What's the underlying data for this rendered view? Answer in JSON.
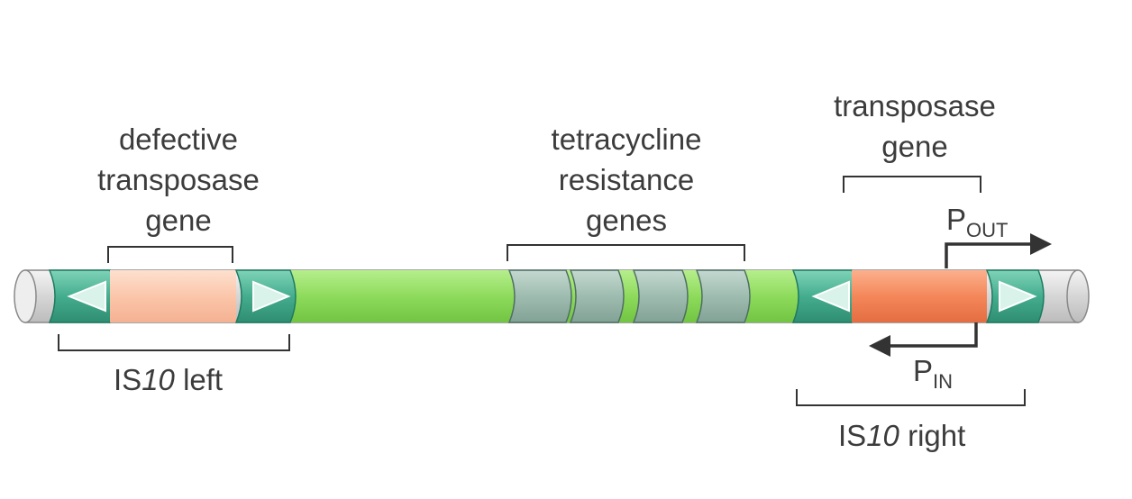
{
  "labels": {
    "defective_transposase": [
      "defective",
      "transposase",
      "gene"
    ],
    "tetracycline_resistance": [
      "tetracycline",
      "resistance",
      "genes"
    ],
    "transposase": [
      "transposase",
      "gene"
    ],
    "is10_left": {
      "prefix": "IS",
      "number": "10",
      "suffix": " left"
    },
    "is10_right": {
      "prefix": "IS",
      "number": "10",
      "suffix": " right"
    },
    "p_out": {
      "main": "P",
      "sub": "OUT"
    },
    "p_in": {
      "main": "P",
      "sub": "IN"
    }
  },
  "colors": {
    "backbone_gray": "#dcdcdc",
    "insertion_teal": "#4fb89a",
    "transposon_green": "#8fdc5e",
    "defective_gene_pink": "#fbc8ad",
    "tet_gene_gray": "#9fbcb0",
    "transposase_orange": "#f4895c",
    "line": "#333333"
  },
  "icons": {
    "left_element": [
      "inverted-repeat-arrow-left-icon",
      "inverted-repeat-arrow-right-icon"
    ],
    "right_element": [
      "inverted-repeat-arrow-left-icon",
      "inverted-repeat-arrow-right-icon"
    ],
    "promoters": [
      "promoter-out-arrow-icon",
      "promoter-in-arrow-icon"
    ]
  }
}
